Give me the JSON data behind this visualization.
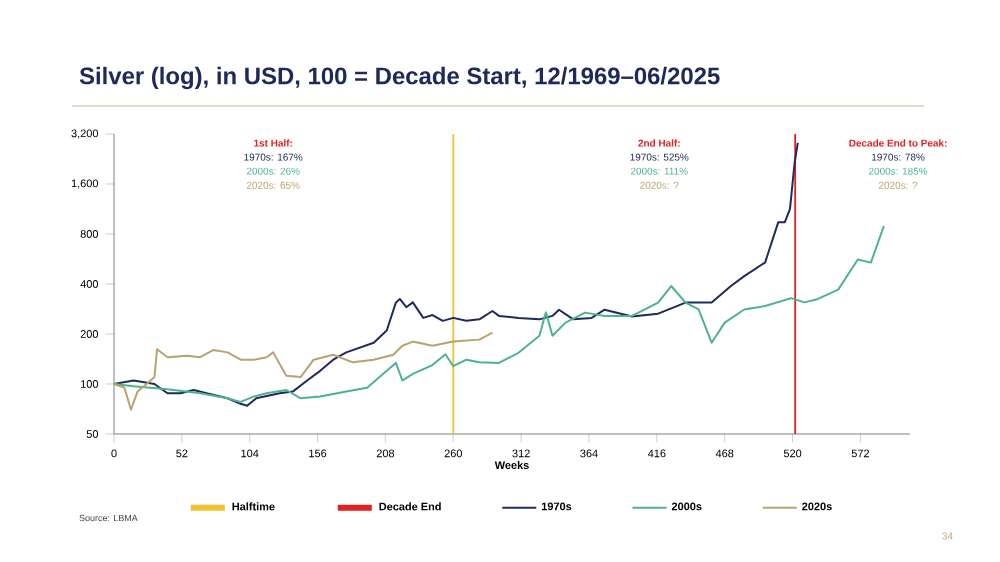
{
  "chart_data": {
    "type": "line",
    "title": "Silver (log), in USD, 100 = Decade Start, 12/1969–06/2025",
    "xlabel": "Weeks",
    "xlim": [
      0,
      610
    ],
    "xticks": [
      0,
      52,
      104,
      156,
      208,
      260,
      312,
      364,
      416,
      468,
      520,
      572
    ],
    "ylim": [
      50,
      3200
    ],
    "yticks": [
      50,
      100,
      200,
      400,
      800,
      {
        "value": 1600,
        "label": "1,600"
      },
      {
        "value": 3200,
        "label": "3,200"
      }
    ],
    "log": "y",
    "grid": false,
    "legend": "bottom",
    "line_style": "solid",
    "marker": "none",
    "ref_lines": [
      {
        "axis": "x",
        "value": 260,
        "label": "Halftime",
        "color": "#f2c12e"
      },
      {
        "axis": "x",
        "value": 522,
        "label": "Decade End",
        "color": "#e02020"
      }
    ],
    "series": [
      {
        "name": "1970s",
        "color": "#1f2a5c",
        "x": [
          0,
          15,
          31,
          41,
          51,
          61,
          71,
          87,
          97,
          102,
          109,
          127,
          137,
          148,
          158,
          168,
          178,
          199,
          209,
          216,
          219,
          224,
          229,
          237,
          244,
          252,
          260,
          270,
          280,
          290,
          295,
          310,
          326,
          336,
          341,
          352,
          366,
          376,
          397,
          417,
          438,
          458,
          473,
          483,
          499,
          509,
          514,
          518,
          521.6,
          524
        ],
        "values": [
          100,
          105,
          100,
          88,
          88,
          92,
          88,
          82,
          76,
          74,
          82,
          88,
          90,
          105,
          120,
          140,
          155,
          177,
          210,
          309,
          325,
          290,
          310,
          250,
          260,
          240,
          250,
          240,
          245,
          275,
          257,
          250,
          245,
          257,
          280,
          245,
          250,
          280,
          255,
          265,
          309,
          309,
          390,
          446,
          540,
          940,
          940,
          1130,
          2150,
          2830
        ]
      },
      {
        "name": "2000s",
        "color": "#4db38e",
        "x": [
          0,
          15,
          41,
          66,
          87,
          97,
          107,
          117,
          132,
          143,
          158,
          178,
          194,
          209,
          216,
          221,
          229,
          244,
          254,
          260,
          270,
          280,
          295,
          310,
          326,
          331,
          336,
          346,
          361,
          376,
          397,
          417,
          427,
          438,
          448,
          458,
          468,
          483,
          499,
          519,
          529,
          539,
          555,
          570,
          580,
          590
        ],
        "values": [
          100,
          97,
          93,
          88,
          82,
          78,
          84,
          88,
          92,
          82,
          84,
          90,
          95,
          120,
          134,
          105,
          115,
          130,
          151,
          128,
          140,
          135,
          134,
          154,
          195,
          270,
          195,
          234,
          269,
          257,
          257,
          309,
          389,
          309,
          281,
          177,
          234,
          281,
          295,
          329,
          310,
          324,
          370,
          562,
          538,
          894
        ]
      },
      {
        "name": "2020s",
        "color": "#b9a26e",
        "x": [
          0,
          8,
          13,
          18,
          25,
          31,
          33,
          41,
          56,
          66,
          76,
          87,
          97,
          107,
          117,
          122,
          132,
          143,
          153,
          168,
          183,
          199,
          214,
          221,
          229,
          244,
          260,
          280,
          290
        ],
        "values": [
          100,
          95,
          70,
          90,
          100,
          110,
          162,
          145,
          148,
          145,
          160,
          155,
          140,
          140,
          145,
          155,
          112,
          110,
          140,
          150,
          135,
          140,
          150,
          170,
          180,
          170,
          180,
          185,
          204
        ]
      }
    ],
    "annotations": [
      "1st Half:",
      "1970s: 167%",
      "2000s: 26%",
      "2020s: 65%",
      "2nd Half:",
      "1970s: 525%",
      "2000s: 111%",
      "2020s: ?",
      "Decade End to Peak:",
      "1970s: 78%",
      "2000s: 185%",
      "2020s: ?",
      "Source: LBMA",
      "34"
    ]
  }
}
